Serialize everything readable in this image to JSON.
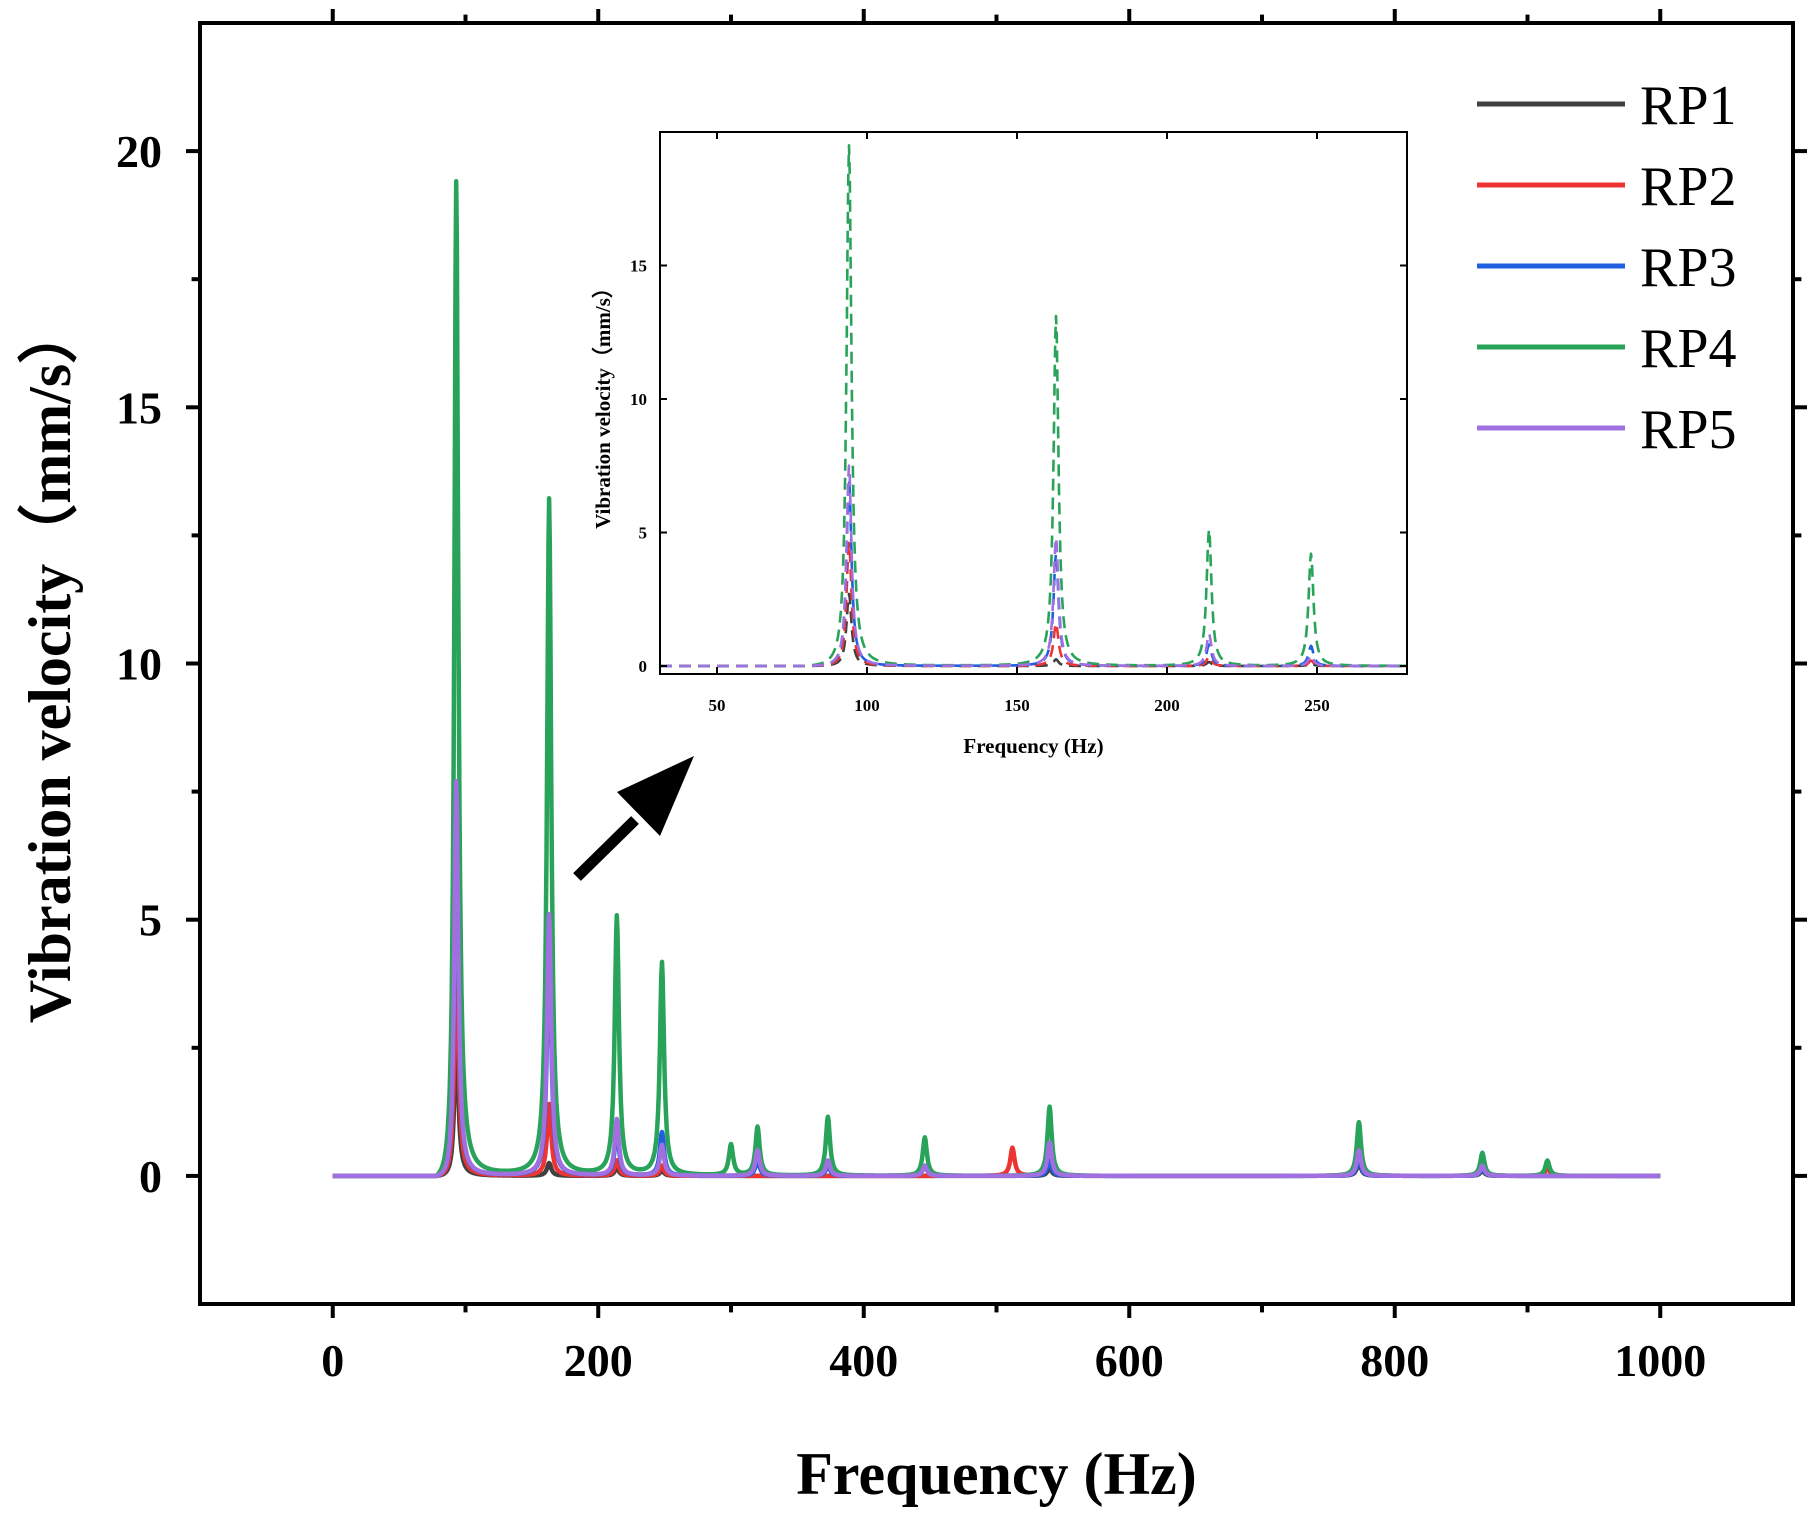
{
  "chart_data": [
    {
      "type": "line",
      "id": "main",
      "xlabel": "Frequency (Hz)",
      "ylabel": "Vibration velocity（mm/s）",
      "xlim": [
        -100,
        1100
      ],
      "ylim": [
        -2.5,
        22.5
      ],
      "xticks": [
        0,
        200,
        400,
        600,
        800,
        1000
      ],
      "yticks": [
        0,
        5,
        10,
        15,
        20
      ],
      "legend_position": "top-right",
      "series": [
        {
          "name": "RP1",
          "color": "#404040",
          "peaks": [
            [
              93,
              2.7
            ],
            [
              163,
              0.25
            ],
            [
              214,
              0.15
            ],
            [
              248,
              0.1
            ],
            [
              540,
              0.15
            ],
            [
              773,
              0.25
            ],
            [
              866,
              0.1
            ]
          ]
        },
        {
          "name": "RP2",
          "color": "#ee3333",
          "peaks": [
            [
              93,
              4.6
            ],
            [
              163,
              1.4
            ],
            [
              214,
              0.3
            ],
            [
              248,
              0.2
            ],
            [
              512,
              0.55
            ],
            [
              540,
              0.3
            ],
            [
              773,
              0.8
            ],
            [
              866,
              0.35
            ],
            [
              915,
              0.15
            ]
          ]
        },
        {
          "name": "RP3",
          "color": "#1f5fe0",
          "peaks": [
            [
              93,
              7.3
            ],
            [
              163,
              4.6
            ],
            [
              214,
              0.9
            ],
            [
              248,
              0.85
            ],
            [
              320,
              0.3
            ],
            [
              373,
              0.2
            ],
            [
              446,
              0.2
            ],
            [
              540,
              0.3
            ],
            [
              773,
              0.35
            ],
            [
              866,
              0.15
            ]
          ]
        },
        {
          "name": "RP4",
          "color": "#2aa35a",
          "peaks": [
            [
              93,
              19.4
            ],
            [
              163,
              13.2
            ],
            [
              214,
              5.05
            ],
            [
              248,
              4.15
            ],
            [
              300,
              0.6
            ],
            [
              320,
              0.95
            ],
            [
              373,
              1.15
            ],
            [
              446,
              0.75
            ],
            [
              540,
              1.35
            ],
            [
              773,
              1.05
            ],
            [
              866,
              0.45
            ],
            [
              915,
              0.3
            ]
          ]
        },
        {
          "name": "RP5",
          "color": "#a070e0",
          "peaks": [
            [
              93,
              7.7
            ],
            [
              163,
              5.1
            ],
            [
              214,
              1.1
            ],
            [
              248,
              0.6
            ],
            [
              320,
              0.5
            ],
            [
              373,
              0.3
            ],
            [
              446,
              0.2
            ],
            [
              540,
              0.65
            ],
            [
              773,
              0.5
            ],
            [
              866,
              0.2
            ]
          ]
        }
      ]
    },
    {
      "type": "line",
      "id": "inset",
      "line_style": "dashed",
      "xlabel": "Frequency (Hz)",
      "ylabel": "Vibration velocity（mm/s）",
      "xlim": [
        31,
        280
      ],
      "ylim": [
        -0.3,
        20.0
      ],
      "xticks": [
        50,
        100,
        150,
        200,
        250
      ],
      "yticks": [
        0,
        5,
        10,
        15
      ],
      "series": [
        {
          "name": "RP1",
          "color": "#404040",
          "peaks": [
            [
              94,
              2.7
            ],
            [
              163,
              0.25
            ],
            [
              214,
              0.15
            ],
            [
              248,
              0.1
            ]
          ]
        },
        {
          "name": "RP2",
          "color": "#ee3333",
          "peaks": [
            [
              94,
              4.6
            ],
            [
              163,
              1.6
            ],
            [
              214,
              0.35
            ],
            [
              248,
              0.2
            ]
          ]
        },
        {
          "name": "RP3",
          "color": "#1f5fe0",
          "peaks": [
            [
              94,
              7.0
            ],
            [
              163,
              4.2
            ],
            [
              214,
              0.8
            ],
            [
              248,
              0.75
            ]
          ]
        },
        {
          "name": "RP4",
          "color": "#2aa35a",
          "peaks": [
            [
              94,
              19.5
            ],
            [
              163,
              13.1
            ],
            [
              214,
              5.1
            ],
            [
              248,
              4.2
            ]
          ]
        },
        {
          "name": "RP5",
          "color": "#a070e0",
          "peaks": [
            [
              94,
              7.5
            ],
            [
              163,
              4.8
            ],
            [
              214,
              1.2
            ],
            [
              248,
              0.4
            ]
          ]
        }
      ]
    }
  ]
}
